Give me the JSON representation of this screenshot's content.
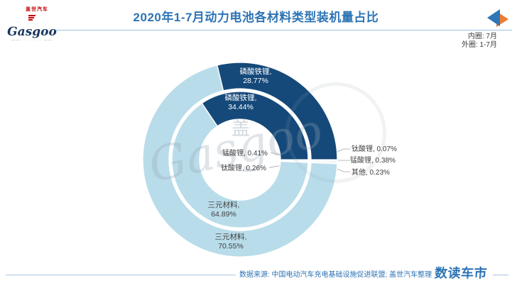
{
  "header": {
    "logo": {
      "cn": "盖世汽车",
      "en": "Gasgoo",
      "tagline": "—— ·· ·· ·· ·· ——"
    },
    "title": "2020年1-7月动力电池各材料类型装机量占比",
    "legend": {
      "inner": "内圈: 7月",
      "outer": "外圈: 1-7月"
    }
  },
  "watermark": {
    "char": "盖",
    "text": "Gasgoo"
  },
  "chart_data": {
    "type": "pie",
    "subtype": "nested_donut",
    "title": "2020年1-7月动力电池各材料类型装机量占比",
    "legend_note": {
      "inner_ring": "7月",
      "outer_ring": "1-7月"
    },
    "start_angle_deg": 90,
    "rings": [
      {
        "id": "inner",
        "period": "7月",
        "slices": [
          {
            "label": "锰酸锂",
            "value": 0.41
          },
          {
            "label": "钛酸锂",
            "value": 0.26
          },
          {
            "label": "三元材料",
            "value": 64.89
          },
          {
            "label": "磷酸铁锂",
            "value": 34.44
          }
        ]
      },
      {
        "id": "outer",
        "period": "1-7月",
        "slices": [
          {
            "label": "钛酸锂",
            "value": 0.07
          },
          {
            "label": "锰酸锂",
            "value": 0.38
          },
          {
            "label": "其他",
            "value": 0.23
          },
          {
            "label": "三元材料",
            "value": 70.55
          },
          {
            "label": "磷酸铁锂",
            "value": 28.77
          }
        ]
      }
    ],
    "colors": {
      "磷酸铁锂": "#15497a",
      "三元材料": "#b9dcea",
      "钛酸锂": "#e2ecf4",
      "锰酸锂": "#eef4f8",
      "其他": "#d8e5ef"
    }
  },
  "callouts": {
    "outer_lfp": {
      "line1": "磷酸铁锂,",
      "line2": "28.77%"
    },
    "inner_lfp": {
      "line1": "磷酸铁锂,",
      "line2": "34.44%"
    },
    "inner_ternary": {
      "line1": "三元材料,",
      "line2": "64.89%"
    },
    "outer_ternary": {
      "line1": "三元材料,",
      "line2": "70.55%"
    },
    "hole_lmo": "锰酸锂, 0.41%",
    "hole_lto": "钛酸锂, 0.26%",
    "right_lto": "钛酸锂, 0.07%",
    "right_lmo": "锰酸锂, 0.38%",
    "right_other": "其他, 0.23%"
  },
  "footer": {
    "source": "数据来源: 中国电动汽车充电基础设施促进联盟; 盖世汽车整理",
    "brand": "数读车市"
  }
}
